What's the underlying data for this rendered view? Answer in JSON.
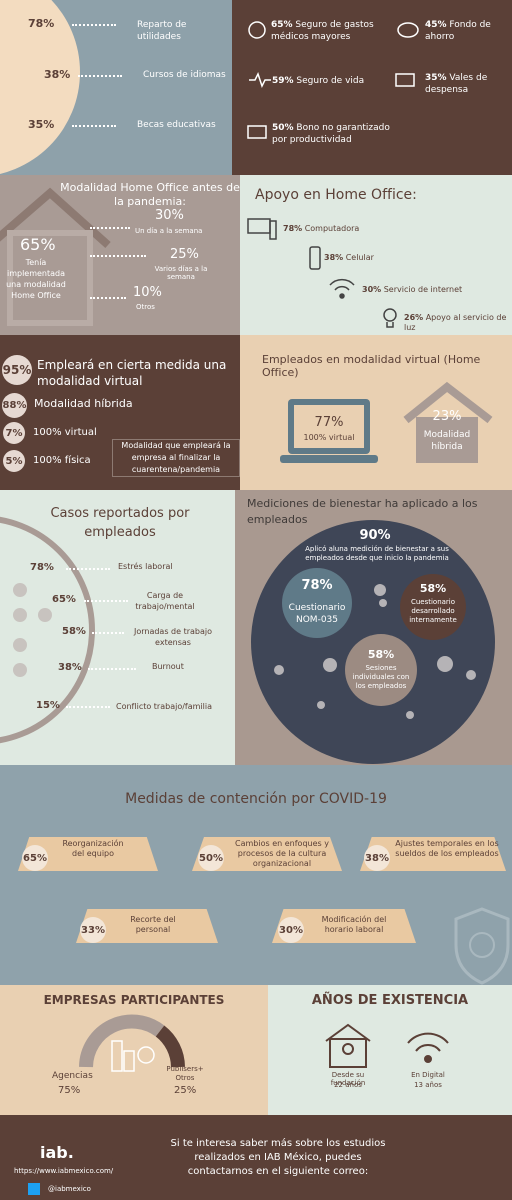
{
  "benefits_left": {
    "items": [
      {
        "value": "78%",
        "label": "Reparto de utilidades"
      },
      {
        "value": "38%",
        "label": "Cursos de idiomas"
      },
      {
        "value": "35%",
        "label": "Becas educativas"
      }
    ]
  },
  "benefits_right": {
    "items": [
      {
        "value": "65%",
        "label": "Seguro de gastos médicos mayores"
      },
      {
        "value": "45%",
        "label": "Fondo de ahorro"
      },
      {
        "value": "59%",
        "label": "Seguro de vida"
      },
      {
        "value": "35%",
        "label": "Vales de despensa"
      },
      {
        "value": "50%",
        "label": "Bono no garantizado por productividad"
      }
    ]
  },
  "home_office_before": {
    "title": "Modalidad Home Office antes de la pandemia:",
    "main": {
      "value": "65%",
      "label": "Tenía implementada una modalidad Home Office"
    },
    "items": [
      {
        "value": "30%",
        "label": "Un día a la semana"
      },
      {
        "value": "25%",
        "label": "Varios días a la semana"
      },
      {
        "value": "10%",
        "label": "Otros"
      }
    ]
  },
  "home_office_support": {
    "title": "Apoyo en Home Office:",
    "items": [
      {
        "value": "78%",
        "label": "Computadora"
      },
      {
        "value": "38%",
        "label": "Celular"
      },
      {
        "value": "30%",
        "label": "Servicio de internet"
      },
      {
        "value": "26%",
        "label": "Apoyo al servicio de luz"
      }
    ]
  },
  "virtual": {
    "items": [
      {
        "value": "95%",
        "label": "Empleará en cierta medida una modalidad virtual"
      },
      {
        "value": "88%",
        "label": "Modalidad híbrida"
      },
      {
        "value": "7%",
        "label": "100% virtual"
      },
      {
        "value": "5%",
        "label": "100% física"
      }
    ],
    "note": "Modalidad que empleará la empresa al finalizar la cuarentena/pandemia"
  },
  "employees_mode": {
    "title": "Empleados en modalidad virtual (Home Office)",
    "virtual": {
      "value": "77%",
      "label": "100% virtual"
    },
    "hybrid": {
      "value": "23%",
      "label": "Modalidad híbrida"
    }
  },
  "cases": {
    "title": "Casos reportados por empleados",
    "items": [
      {
        "value": "78%",
        "label": "Estrés laboral"
      },
      {
        "value": "65%",
        "label": "Carga de trabajo/mental"
      },
      {
        "value": "58%",
        "label": "Jornadas de trabajo extensas"
      },
      {
        "value": "38%",
        "label": "Burnout"
      },
      {
        "value": "15%",
        "label": "Conflicto trabajo/familia"
      }
    ]
  },
  "wellbeing": {
    "title": "Mediciones de bienestar ha aplicado a los empleados",
    "main": {
      "value": "90%",
      "label": "Aplicó aluna medición de bienestar a sus empleados desde que inicio la pandemia"
    },
    "items": [
      {
        "value": "78%",
        "label": "Cuestionario NOM-035"
      },
      {
        "value": "58%",
        "label": "Cuestionario desarrollado internamente"
      },
      {
        "value": "58%",
        "label": "Sesiones individuales con los empleados"
      }
    ]
  },
  "containment": {
    "title": "Medidas de contención por COVID-19",
    "items": [
      {
        "value": "65%",
        "label": "Reorganización del equipo"
      },
      {
        "value": "50%",
        "label": "Cambios en enfoques y procesos de la cultura organizacional"
      },
      {
        "value": "38%",
        "label": "Ajustes temporales en los sueldos de los empleados"
      },
      {
        "value": "33%",
        "label": "Recorte del personal"
      },
      {
        "value": "30%",
        "label": "Modificación del horario laboral"
      }
    ]
  },
  "companies": {
    "title": "EMPRESAS PARTICIPANTES",
    "items": [
      {
        "label": "Agencias",
        "value": "75%"
      },
      {
        "label": "Publisers+ Otros",
        "value": "25%"
      }
    ]
  },
  "years": {
    "title": "AÑOS DE EXISTENCIA",
    "items": [
      {
        "label": "Desde su fundación",
        "value": "22 años"
      },
      {
        "label": "En Digital",
        "value": "13 años"
      }
    ]
  },
  "footer": {
    "logo": "iab.",
    "url": "https://www.iabmexico.com/",
    "twitter": "@iabmexico",
    "message": "Si te interesa saber más sobre los estudios realizados en IAB México, puedes contactarnos en el siguiente correo:"
  }
}
